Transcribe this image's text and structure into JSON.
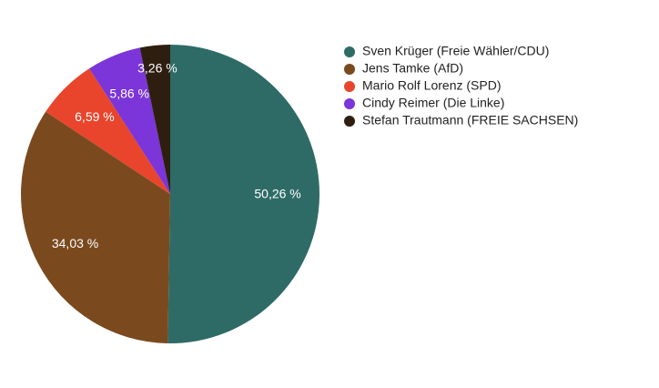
{
  "chart_data": {
    "type": "pie",
    "categories": [
      "Sven Krüger (Freie Wähler/CDU)",
      "Jens Tamke (AfD)",
      "Mario Rolf Lorenz (SPD)",
      "Cindy Reimer (Die Linke)",
      "Stefan Trautmann (FREIE SACHSEN)"
    ],
    "values": [
      50.26,
      34.03,
      6.59,
      5.86,
      3.26
    ],
    "value_labels": [
      "50,26 %",
      "34,03 %",
      "6,59 %",
      "5,86 %",
      "3,26 %"
    ],
    "colors": [
      "#2e6b66",
      "#7a4a1e",
      "#e8452c",
      "#7b35d8",
      "#2e1e10"
    ]
  }
}
